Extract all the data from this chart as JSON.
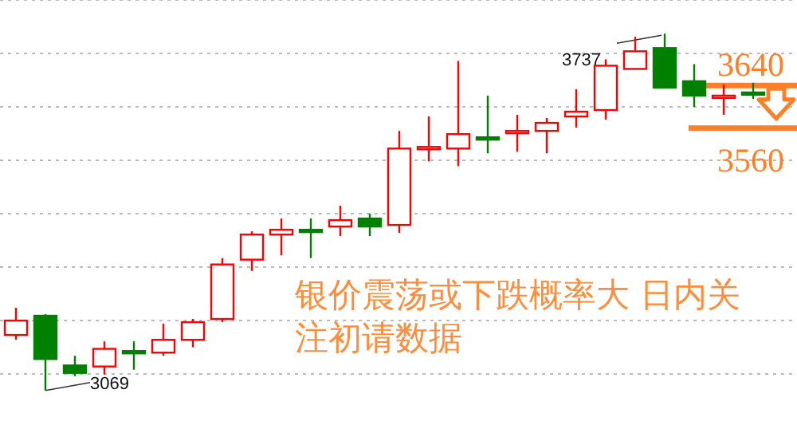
{
  "chart_data": {
    "type": "candlestick",
    "categories": [
      null,
      null,
      null,
      null,
      null,
      null,
      null,
      null,
      null,
      null,
      null,
      null,
      null,
      null,
      null,
      null,
      null,
      null,
      null,
      null,
      null,
      null,
      null,
      null,
      null,
      null
    ],
    "ohlc": [
      [
        3173,
        3224,
        3164,
        3200
      ],
      [
        3209,
        3212,
        3069,
        3128
      ],
      [
        3116,
        3134,
        3096,
        3102
      ],
      [
        3114,
        3161,
        3099,
        3147
      ],
      [
        3143,
        3161,
        3108,
        3140
      ],
      [
        3140,
        3194,
        3134,
        3164
      ],
      [
        3164,
        3203,
        3150,
        3197
      ],
      [
        3203,
        3317,
        3197,
        3305
      ],
      [
        3314,
        3367,
        3293,
        3361
      ],
      [
        3361,
        3391,
        3322,
        3370
      ],
      [
        3370,
        3391,
        3317,
        3367
      ],
      [
        3376,
        3415,
        3358,
        3388
      ],
      [
        3391,
        3400,
        3358,
        3376
      ],
      [
        3379,
        3555,
        3364,
        3522
      ],
      [
        3522,
        3582,
        3498,
        3525
      ],
      [
        3522,
        3686,
        3489,
        3549
      ],
      [
        3543,
        3621,
        3513,
        3540
      ],
      [
        3552,
        3585,
        3516,
        3555
      ],
      [
        3555,
        3579,
        3513,
        3570
      ],
      [
        3582,
        3633,
        3561,
        3591
      ],
      [
        3594,
        3689,
        3576,
        3677
      ],
      [
        3671,
        3731,
        3671,
        3704
      ],
      [
        3710,
        3737,
        3636,
        3636
      ],
      [
        3648,
        3680,
        3600,
        3621
      ],
      [
        3618,
        3642,
        3585,
        3621
      ],
      [
        3627,
        3645,
        3615,
        3624
      ]
    ],
    "colors": [
      "#ff0000",
      "#008000",
      "#008000",
      "#ff0000",
      "#008000",
      "#ff0000",
      "#ff0000",
      "#ff0000",
      "#ff0000",
      "#ff0000",
      "#008000",
      "#ff0000",
      "#008000",
      "#ff0000",
      "#ff0000",
      "#ff0000",
      "#008000",
      "#ff0000",
      "#ff0000",
      "#ff0000",
      "#ff0000",
      "#ff0000",
      "#008000",
      "#008000",
      "#ff0000",
      "#008000"
    ],
    "ylim": [
      3012,
      3800
    ],
    "yticks": [
      {
        "value": 3100,
        "label": null
      },
      {
        "value": 3200,
        "label": null
      },
      {
        "value": 3300,
        "label": null
      },
      {
        "value": 3400,
        "label": null
      },
      {
        "value": 3500,
        "label": null
      },
      {
        "value": 3600,
        "label": null
      },
      {
        "value": 3700,
        "label": null
      },
      {
        "value": 3800,
        "label": null
      }
    ],
    "grid": "y",
    "ref_lines": [
      {
        "axis": "y",
        "value": 3640,
        "label": "3640",
        "color": "#ff7f27"
      },
      {
        "axis": "y",
        "value": 3560,
        "label": "3560",
        "color": "#ff7f27"
      }
    ],
    "annotations": [
      "3737",
      "3069",
      "银价震荡或下跌概率大 日内关注初请数据"
    ]
  }
}
